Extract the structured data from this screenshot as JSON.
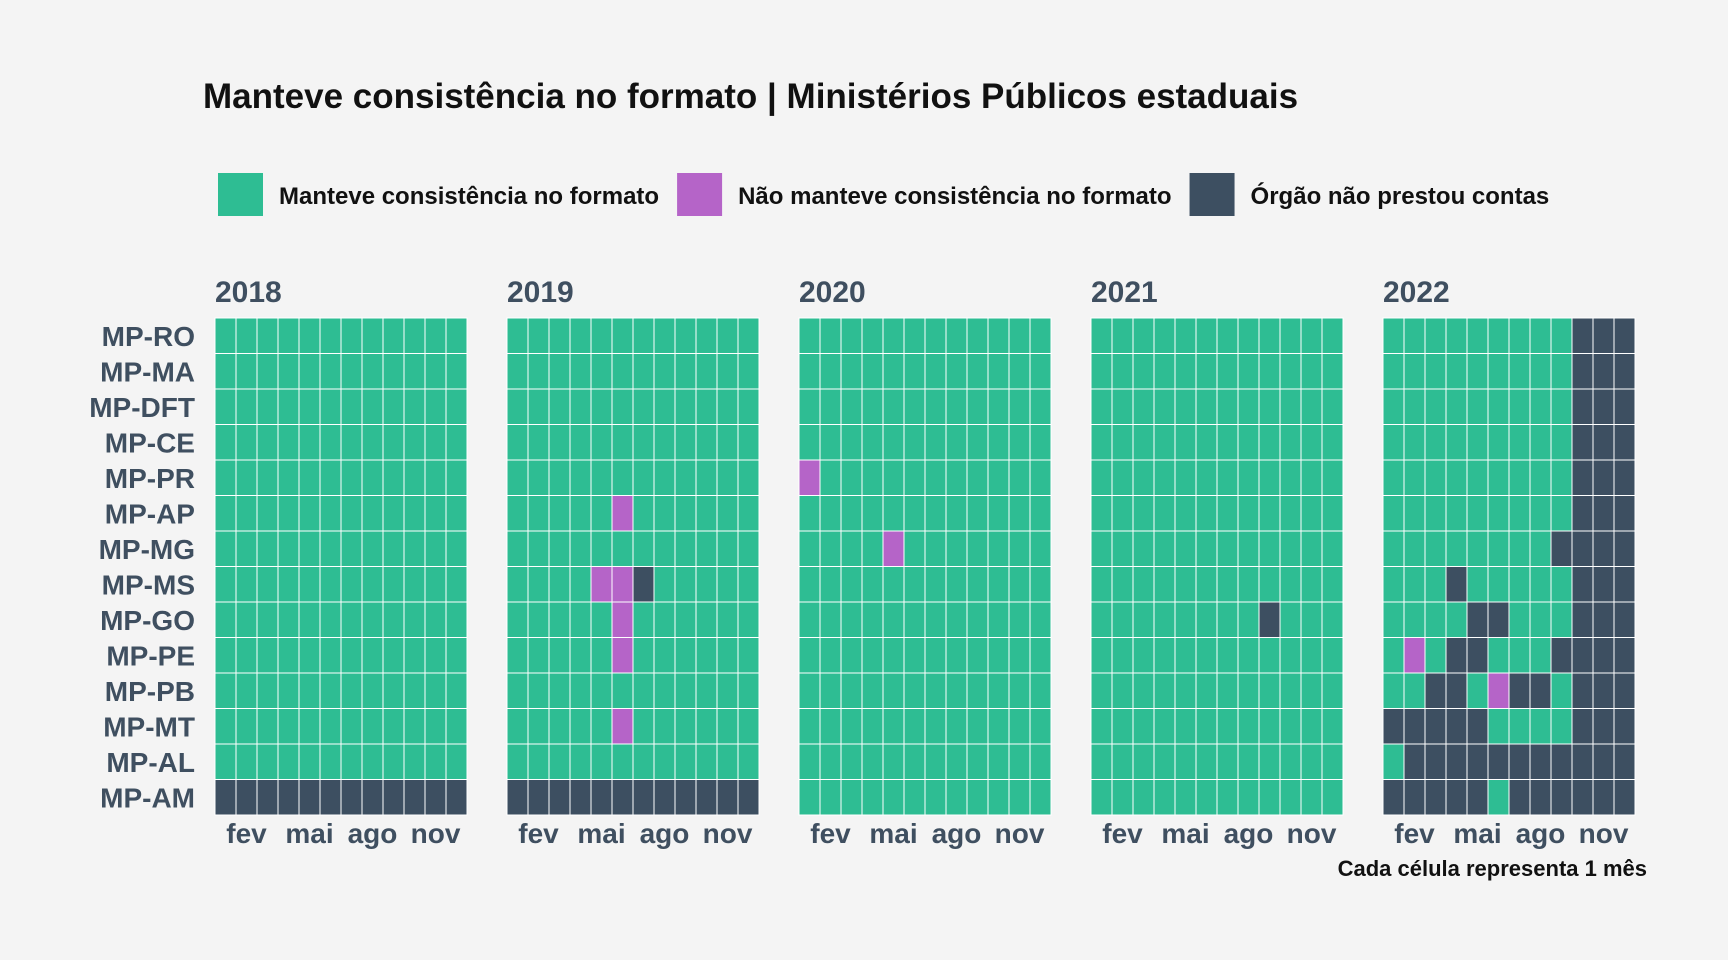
{
  "chart_data": {
    "type": "heatmap",
    "title": "Manteve consistência no formato | Ministérios Públicos estaduais",
    "caption": "Cada célula representa 1 mês",
    "legend": [
      {
        "label": "Manteve consistência no formato",
        "code": "S",
        "color": "#2ebd93"
      },
      {
        "label": "Não manteve consistência no formato",
        "code": "N",
        "color": "#b564c8"
      },
      {
        "label": "Órgão não prestou contas",
        "code": "X",
        "color": "#3d4f61"
      }
    ],
    "legend_placement": "top",
    "cell_unit": "month",
    "x_tick_labels": [
      "fev",
      "mai",
      "ago",
      "nov"
    ],
    "x_tick_months": [
      2,
      5,
      8,
      11
    ],
    "rows": [
      "MP-RO",
      "MP-MA",
      "MP-DFT",
      "MP-CE",
      "MP-PR",
      "MP-AP",
      "MP-MG",
      "MP-MS",
      "MP-GO",
      "MP-PE",
      "MP-PB",
      "MP-MT",
      "MP-AL",
      "MP-AM"
    ],
    "facets": [
      {
        "year": "2018",
        "matrix": [
          "SSSSSSSSSSSS",
          "SSSSSSSSSSSS",
          "SSSSSSSSSSSS",
          "SSSSSSSSSSSS",
          "SSSSSSSSSSSS",
          "SSSSSSSSSSSS",
          "SSSSSSSSSSSS",
          "SSSSSSSSSSSS",
          "SSSSSSSSSSSS",
          "SSSSSSSSSSSS",
          "SSSSSSSSSSSS",
          "SSSSSSSSSSSS",
          "SSSSSSSSSSSS",
          "XXXXXXXXXXXX"
        ]
      },
      {
        "year": "2019",
        "matrix": [
          "SSSSSSSSSSSS",
          "SSSSSSSSSSSS",
          "SSSSSSSSSSSS",
          "SSSSSSSSSSSS",
          "SSSSSSSSSSSS",
          "SSSSSNSSSSSS",
          "SSSSSSSSSSSS",
          "SSSSNNXSSSSS",
          "SSSSSNSSSSSS",
          "SSSSSNSSSSSS",
          "SSSSSSSSSSSS",
          "SSSSSNSSSSSS",
          "SSSSSSSSSSSS",
          "XXXXXXXXXXXX"
        ]
      },
      {
        "year": "2020",
        "matrix": [
          "SSSSSSSSSSSS",
          "SSSSSSSSSSSS",
          "SSSSSSSSSSSS",
          "SSSSSSSSSSSS",
          "NSSSSSSSSSSS",
          "SSSSSSSSSSSS",
          "SSSSNSSSSSSS",
          "SSSSSSSSSSSS",
          "SSSSSSSSSSSS",
          "SSSSSSSSSSSS",
          "SSSSSSSSSSSS",
          "SSSSSSSSSSSS",
          "SSSSSSSSSSSS",
          "SSSSSSSSSSSS"
        ]
      },
      {
        "year": "2021",
        "matrix": [
          "SSSSSSSSSSSS",
          "SSSSSSSSSSSS",
          "SSSSSSSSSSSS",
          "SSSSSSSSSSSS",
          "SSSSSSSSSSSS",
          "SSSSSSSSSSSS",
          "SSSSSSSSSSSS",
          "SSSSSSSSSSSS",
          "SSSSSSSSXSSS",
          "SSSSSSSSSSSS",
          "SSSSSSSSSSSS",
          "SSSSSSSSSSSS",
          "SSSSSSSSSSSS",
          "SSSSSSSSSSSS"
        ]
      },
      {
        "year": "2022",
        "matrix": [
          "SSSSSSSSSXXX",
          "SSSSSSSSSXXX",
          "SSSSSSSSSXXX",
          "SSSSSSSSSXXX",
          "SSSSSSSSSXXX",
          "SSSSSSSSSXXX",
          "SSSSSSSSXXXX",
          "SSSXSSSSSXXX",
          "SSSSXXSSSXXX",
          "SNSXXSSSXXXX",
          "SSXXSNXXSXXX",
          "XXXXXSSSSXXX",
          "SXXXXXXXXXXX",
          "XXXXXSXXXXXX"
        ]
      }
    ]
  }
}
